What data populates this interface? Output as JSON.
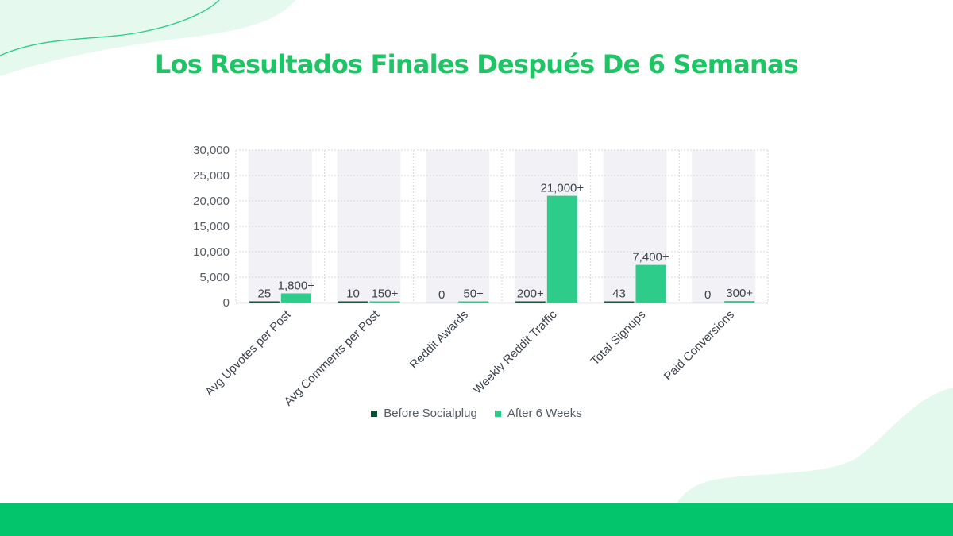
{
  "title": "Los Resultados Finales Después De 6 Semanas",
  "colors": {
    "title": "#1fc466",
    "before": "#0b4d33",
    "after": "#2ecc8a",
    "band": "#03c56b",
    "column_bg": "#f1f1f6"
  },
  "chart_data": {
    "type": "bar",
    "title": "",
    "xlabel": "",
    "ylabel": "",
    "ylim": [
      0,
      30000
    ],
    "yticks": [
      0,
      5000,
      10000,
      15000,
      20000,
      25000,
      30000
    ],
    "ytick_labels": [
      "0",
      "5,000",
      "10,000",
      "15,000",
      "20,000",
      "25,000",
      "30,000"
    ],
    "grid": true,
    "legend_position": "bottom",
    "categories": [
      "Avg Upvotes per Post",
      "Avg Comments per Post",
      "Reddit Awards",
      "Weekly Reddit Traffic",
      "Total Signups",
      "Paid Conversions"
    ],
    "series": [
      {
        "name": "Before Socialplug",
        "color": "#0b4d33",
        "values": [
          25,
          10,
          0,
          200,
          43,
          0
        ],
        "labels": [
          "25",
          "10",
          "0",
          "200+",
          "43",
          "0"
        ]
      },
      {
        "name": "After 6 Weeks",
        "color": "#2ecc8a",
        "values": [
          1800,
          150,
          50,
          21000,
          7400,
          300
        ],
        "labels": [
          "1,800+",
          "150+",
          "50+",
          "21,000+",
          "7,400+",
          "300+"
        ]
      }
    ]
  }
}
